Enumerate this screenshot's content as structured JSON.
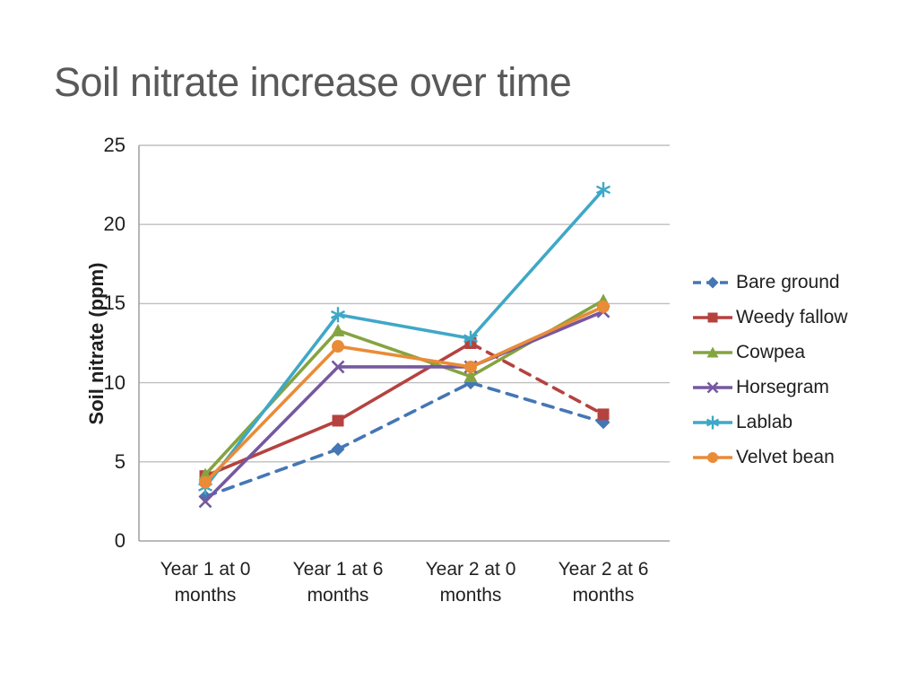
{
  "title": "Soil nitrate increase over time",
  "chart_data": {
    "type": "line",
    "title": "Soil nitrate increase over time",
    "xlabel": "",
    "ylabel": "Soil nitrate (ppm)",
    "ylim": [
      0,
      25
    ],
    "yticks": [
      0,
      5,
      10,
      15,
      20,
      25
    ],
    "grid": true,
    "legend_position": "right",
    "categories": [
      "Year 1 at 0 months",
      "Year 1 at 6 months",
      "Year 2 at 0 months",
      "Year 2 at 6 months"
    ],
    "series": [
      {
        "name": "Bare ground",
        "color": "#4576b5",
        "marker": "diamond",
        "values": [
          2.8,
          5.8,
          10.0,
          7.5
        ],
        "dash_segments": [
          true,
          true,
          true
        ],
        "legend_dashed": true
      },
      {
        "name": "Weedy fallow",
        "color": "#b5423f",
        "marker": "square",
        "values": [
          4.1,
          7.6,
          12.5,
          8.0
        ],
        "dash_segments": [
          false,
          false,
          true
        ],
        "legend_dashed": false
      },
      {
        "name": "Cowpea",
        "color": "#84a440",
        "marker": "triangle",
        "values": [
          4.2,
          13.3,
          10.4,
          15.2
        ],
        "dash_segments": [
          false,
          false,
          false
        ],
        "legend_dashed": false
      },
      {
        "name": "Horsegram",
        "color": "#75589f",
        "marker": "x",
        "values": [
          2.5,
          11.0,
          11.0,
          14.5
        ],
        "dash_segments": [
          false,
          false,
          false
        ],
        "legend_dashed": false
      },
      {
        "name": "Lablab",
        "color": "#3fa8c6",
        "marker": "asterisk",
        "values": [
          3.4,
          14.3,
          12.8,
          22.2
        ],
        "dash_segments": [
          false,
          false,
          false
        ],
        "legend_dashed": false
      },
      {
        "name": "Velvet bean",
        "color": "#ea8b38",
        "marker": "circle",
        "values": [
          3.7,
          12.3,
          11.0,
          14.8
        ],
        "dash_segments": [
          false,
          false,
          false
        ],
        "legend_dashed": false
      }
    ]
  },
  "colors": {
    "background": "#ffffff",
    "title_text": "#595959",
    "axis_text": "#1f1f1f",
    "gridline": "#bfbfbf",
    "axis_line": "#a3a3a3"
  }
}
